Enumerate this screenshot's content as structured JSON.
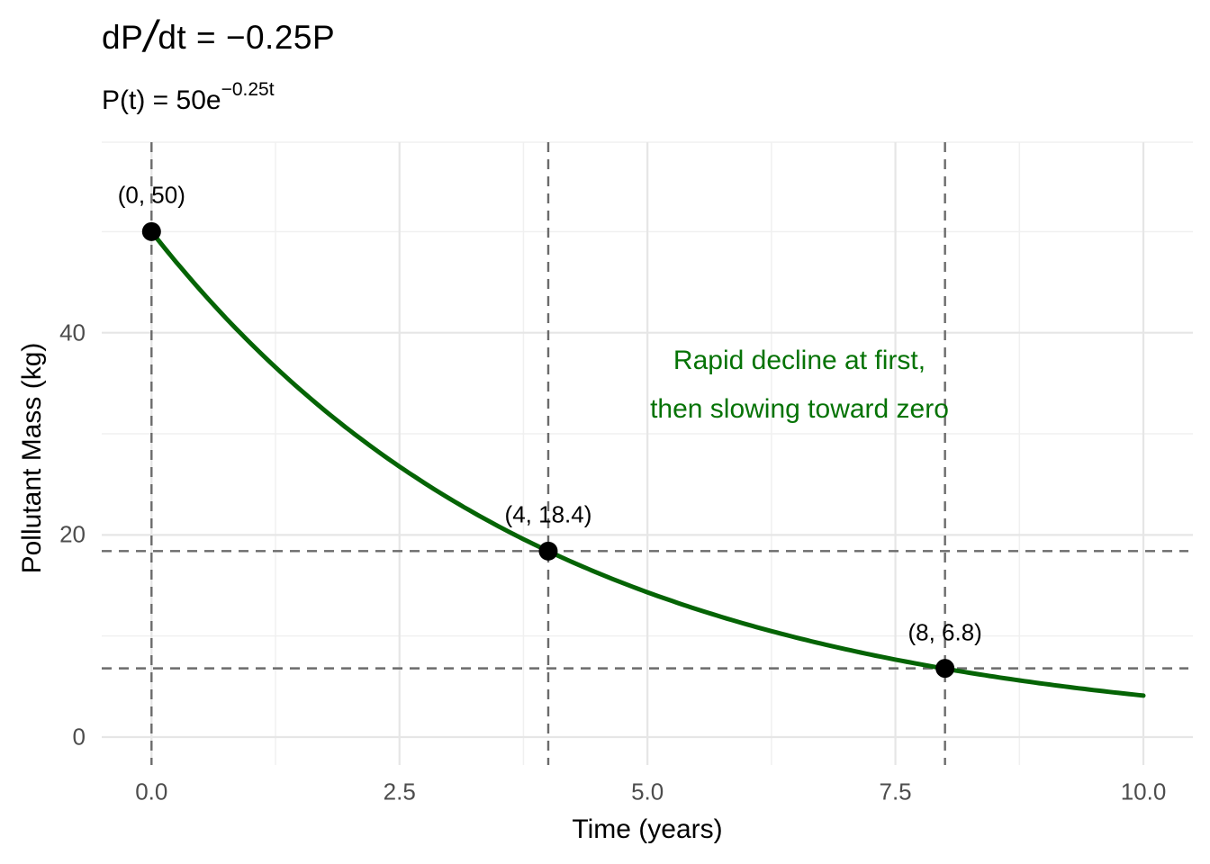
{
  "title_math": {
    "num": "dP",
    "slash": "/",
    "rest": "dt = −0.25P",
    "full": "dP/dt = −0.25P"
  },
  "subtitle": {
    "base": "P(t) = 50e",
    "sup": "−0.25t",
    "full": "P(t) = 50e^(−0.25t)"
  },
  "chart_data": {
    "type": "line",
    "title": "dP/dt = −0.25P",
    "subtitle": "P(t) = 50e^(−0.25t)",
    "xlabel": "Time (years)",
    "ylabel": "Pollutant Mass (kg)",
    "xlim": [
      0,
      10
    ],
    "ylim": [
      0,
      50
    ],
    "grid": true,
    "legend": false,
    "curve": {
      "formula": "P(t) = 50·e^(−0.25t)",
      "P0": 50,
      "rate": -0.25,
      "t_min": 0,
      "t_max": 10
    },
    "points": [
      {
        "t": 0,
        "P": 50,
        "label": "(0, 50)"
      },
      {
        "t": 4,
        "P": 18.4,
        "label": "(4, 18.4)"
      },
      {
        "t": 8,
        "P": 6.8,
        "label": "(8, 6.8)"
      }
    ],
    "guide_lines": {
      "vertical_t": [
        0,
        4,
        8
      ],
      "horizontal_P": [
        18.4,
        6.8
      ]
    },
    "x_ticks": {
      "values": [
        0,
        2.5,
        5,
        7.5,
        10
      ],
      "labels": [
        "0.0",
        "2.5",
        "5.0",
        "7.5",
        "10.0"
      ]
    },
    "x_minor": [
      1.25,
      3.75,
      6.25,
      8.75
    ],
    "y_ticks": {
      "values": [
        0,
        20,
        40
      ],
      "labels": [
        "0",
        "20",
        "40"
      ]
    },
    "y_minor": [
      10,
      30,
      50
    ],
    "annotation": {
      "lines": [
        "Rapid decline at first,",
        "then slowing toward zero"
      ]
    }
  },
  "colors": {
    "curve_green": "#056405",
    "annotation_green": "#067306",
    "guide_gray": "#6b6b6b",
    "grid_major": "#e6e6e6",
    "grid_minor": "#f0f0f0",
    "tick_label_gray": "#4d4d4d",
    "point_black": "#000000"
  }
}
